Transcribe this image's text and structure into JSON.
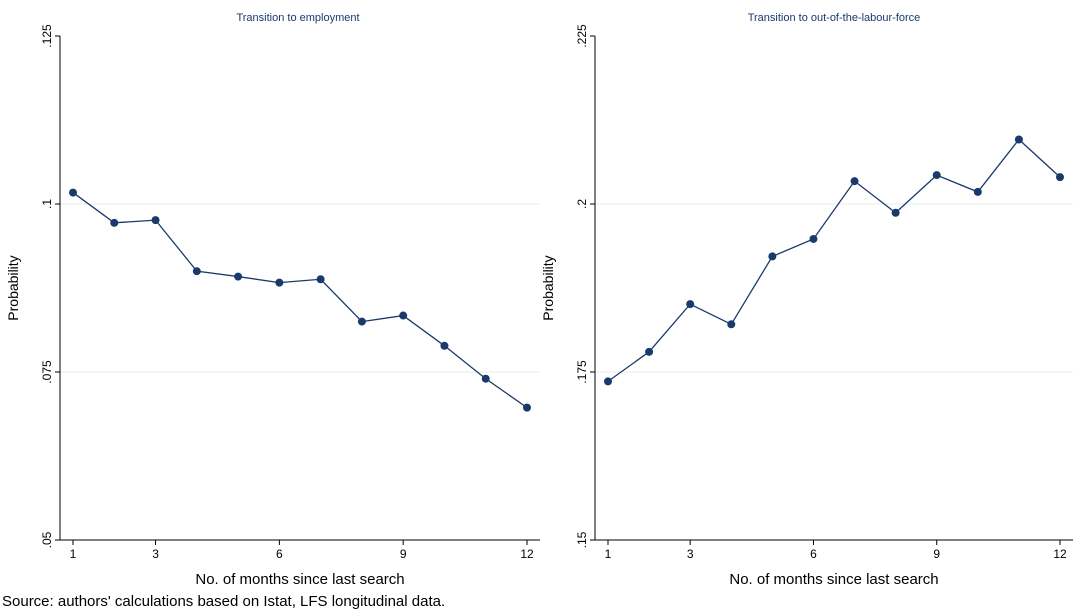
{
  "chart_data": [
    {
      "type": "line",
      "title": "Transition to employment",
      "xlabel": "No. of months since last search",
      "ylabel": "Probability",
      "x": [
        1,
        2,
        3,
        4,
        5,
        6,
        7,
        8,
        9,
        10,
        11,
        12
      ],
      "series": [
        {
          "values": [
            0.1017,
            0.0972,
            0.0976,
            0.09,
            0.0892,
            0.0883,
            0.0888,
            0.0825,
            0.0834,
            0.0789,
            0.074,
            0.0697
          ]
        }
      ],
      "xlim": [
        1,
        12
      ],
      "ylim": [
        0.05,
        0.125
      ],
      "xticks": [
        "1",
        "3",
        "6",
        "9",
        "12"
      ],
      "xtick_values": [
        1,
        3,
        6,
        9,
        12
      ],
      "yticks": [
        ".05",
        ".075",
        ".1",
        ".125"
      ],
      "ytick_values": [
        0.05,
        0.075,
        0.1,
        0.125
      ],
      "grid": true,
      "line_color": "#1a3a6b",
      "marker_color": "#1a3a6b"
    },
    {
      "type": "line",
      "title": "Transition to out-of-the-labour-force",
      "xlabel": "No. of months since last search",
      "ylabel": "Probability",
      "x": [
        1,
        2,
        3,
        4,
        5,
        6,
        7,
        8,
        9,
        10,
        11,
        12
      ],
      "series": [
        {
          "values": [
            0.1736,
            0.178,
            0.1851,
            0.1821,
            0.1922,
            0.1948,
            0.2034,
            0.1987,
            0.2043,
            0.2018,
            0.2096,
            0.204
          ]
        }
      ],
      "xlim": [
        1,
        12
      ],
      "ylim": [
        0.15,
        0.225
      ],
      "xticks": [
        "1",
        "3",
        "6",
        "9",
        "12"
      ],
      "xtick_values": [
        1,
        3,
        6,
        9,
        12
      ],
      "yticks": [
        ".15",
        ".175",
        ".2",
        ".225"
      ],
      "ytick_values": [
        0.15,
        0.175,
        0.2,
        0.225
      ],
      "grid": true,
      "line_color": "#1a3a6b",
      "marker_color": "#1a3a6b"
    }
  ],
  "source_note": "Source: authors' calculations based on Istat, LFS longitudinal data."
}
